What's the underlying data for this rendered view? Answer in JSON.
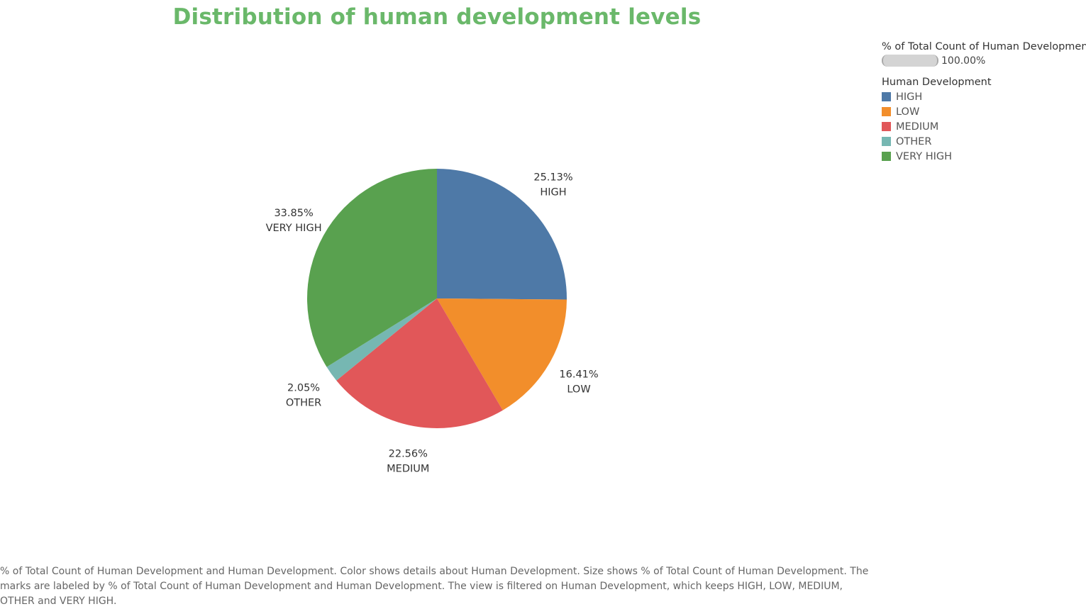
{
  "title": "Distribution of human development levels",
  "legend": {
    "size_title": "% of Total Count of Human Development",
    "size_value": "100.00%",
    "color_title": "Human Development",
    "items": [
      {
        "label": "HIGH",
        "color": "#4e79a7"
      },
      {
        "label": "LOW",
        "color": "#f28e2b"
      },
      {
        "label": "MEDIUM",
        "color": "#e15759"
      },
      {
        "label": "OTHER",
        "color": "#76b7b2"
      },
      {
        "label": "VERY HIGH",
        "color": "#59a14f"
      }
    ]
  },
  "chart_data": {
    "type": "pie",
    "title": "Distribution of human development levels",
    "slices": [
      {
        "label": "HIGH",
        "value": 25.13,
        "value_label": "25.13%",
        "color": "#4e79a7"
      },
      {
        "label": "LOW",
        "value": 16.41,
        "value_label": "16.41%",
        "color": "#f28e2b"
      },
      {
        "label": "MEDIUM",
        "value": 22.56,
        "value_label": "22.56%",
        "color": "#e15759"
      },
      {
        "label": "OTHER",
        "value": 2.05,
        "value_label": "2.05%",
        "color": "#76b7b2"
      },
      {
        "label": "VERY HIGH",
        "value": 33.85,
        "value_label": "33.85%",
        "color": "#59a14f"
      }
    ],
    "legend_position": "top-right"
  },
  "caption": "% of Total Count of Human Development and Human Development.  Color shows details about Human Development.  Size shows % of Total Count of Human Development.  The marks are labeled by % of Total Count of Human Development and Human Development. The view is filtered on Human Development, which keeps HIGH, LOW, MEDIUM, OTHER and VERY HIGH."
}
